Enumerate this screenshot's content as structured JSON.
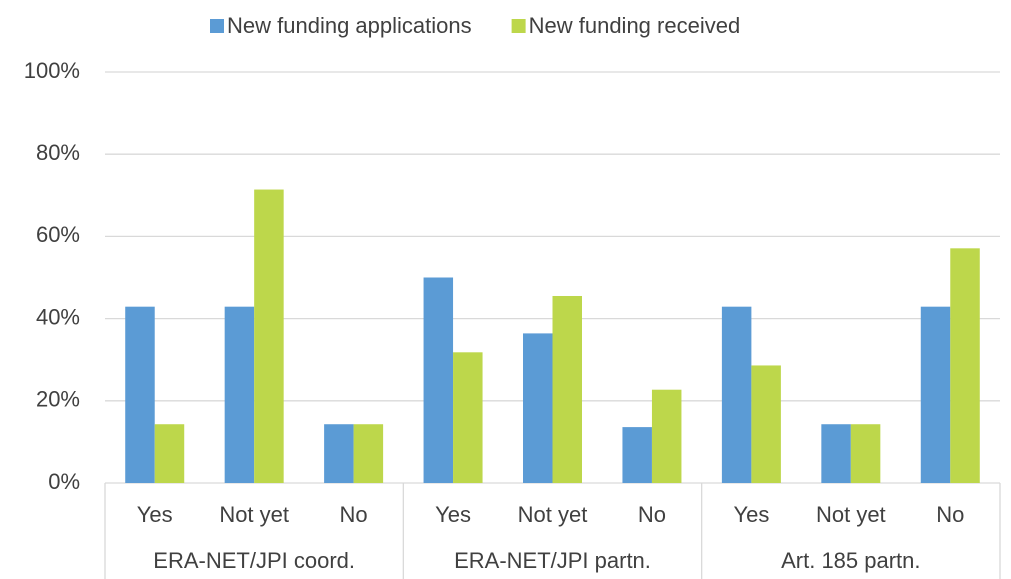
{
  "chart_data": {
    "type": "bar",
    "categories": [
      "Yes",
      "Not yet",
      "No",
      "Yes",
      "Not yet",
      "No",
      "Yes",
      "Not yet",
      "No"
    ],
    "category_groups": [
      "ERA-NET/JPI coord.",
      "ERA-NET/JPI partn.",
      "Art. 185 partn."
    ],
    "series": [
      {
        "name": "New funding applications",
        "color": "#5b9bd5",
        "values": [
          42.9,
          42.9,
          14.3,
          50.0,
          36.4,
          13.6,
          42.9,
          14.3,
          42.9
        ]
      },
      {
        "name": "New funding received",
        "color": "#bdd74b",
        "values": [
          14.3,
          71.4,
          14.3,
          31.8,
          45.5,
          22.7,
          28.6,
          14.3,
          57.1
        ]
      }
    ],
    "ylim": [
      0,
      100
    ],
    "yticks": [
      {
        "value": 0,
        "label": "0%"
      },
      {
        "value": 20,
        "label": "20%"
      },
      {
        "value": 40,
        "label": "40%"
      },
      {
        "value": 60,
        "label": "60%"
      },
      {
        "value": 80,
        "label": "80%"
      },
      {
        "value": 100,
        "label": "100%"
      }
    ],
    "grid": true,
    "legend": "top"
  }
}
